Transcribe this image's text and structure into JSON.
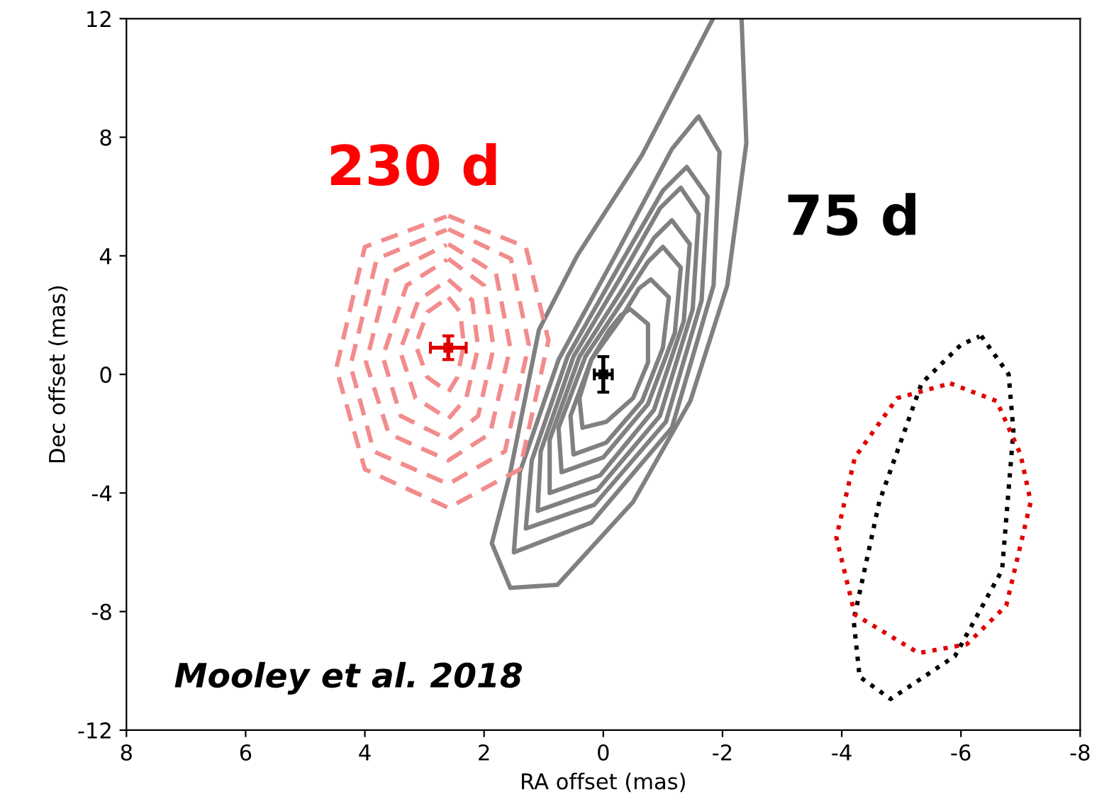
{
  "chart_data": {
    "type": "line",
    "xlabel": "RA offset (mas)",
    "ylabel": "Dec offset (mas)",
    "xlim": [
      8,
      -8
    ],
    "xticks": [
      8,
      6,
      4,
      2,
      0,
      -2,
      -4,
      -6,
      -8
    ],
    "ylim": [
      -12,
      12
    ],
    "yticks": [
      -12,
      -8,
      -4,
      0,
      4,
      8,
      12
    ],
    "grid": false,
    "annotations": [
      "230 d",
      "75 d",
      "Mooley et al. 2018"
    ],
    "series": [
      {
        "color": "#808080",
        "line_style": "solid",
        "x": [
          -1.84,
          -0.65,
          0.44,
          1.08,
          1.56,
          1.87,
          1.56,
          0.77,
          -0.5,
          -1.46,
          -2.08,
          -2.4,
          -2.32
        ],
        "values": [
          12,
          7.4,
          4.0,
          1.5,
          -3.3,
          -5.7,
          -7.2,
          -7.1,
          -4.3,
          -0.9,
          3.0,
          7.8,
          12
        ]
      },
      {
        "color": "#808080",
        "line_style": "solid",
        "x": [
          -1.6,
          -1.95,
          -1.85,
          -1.15,
          0.2,
          1.5,
          1.4,
          0.75,
          -0.2,
          -1.15,
          -1.58
        ],
        "values": [
          8.7,
          7.5,
          3.0,
          -1.8,
          -5.0,
          -6.0,
          -3.3,
          0.5,
          4.0,
          7.6,
          8.66
        ]
      },
      {
        "color": "#808080",
        "line_style": "solid",
        "x": [
          -1.4,
          -1.75,
          -1.65,
          -1.05,
          0.15,
          1.3,
          1.2,
          0.6,
          -0.25,
          -1.0,
          -1.38
        ],
        "values": [
          7.0,
          6.0,
          2.5,
          -1.6,
          -4.4,
          -5.2,
          -2.9,
          0.6,
          3.6,
          6.2,
          6.96
        ]
      },
      {
        "color": "#808080",
        "line_style": "solid",
        "x": [
          -1.3,
          -1.6,
          -1.5,
          -0.95,
          0.1,
          1.1,
          1.05,
          0.5,
          -0.3,
          -0.95,
          -1.28
        ],
        "values": [
          6.3,
          5.4,
          2.2,
          -1.4,
          -3.9,
          -4.6,
          -2.6,
          0.6,
          3.3,
          5.6,
          6.26
        ]
      },
      {
        "color": "#808080",
        "line_style": "solid",
        "x": [
          -1.15,
          -1.45,
          -1.35,
          -0.85,
          0.05,
          0.9,
          0.9,
          0.4,
          -0.3,
          -0.85,
          -1.13
        ],
        "values": [
          5.2,
          4.4,
          1.8,
          -1.2,
          -3.4,
          -4.0,
          -2.2,
          0.6,
          2.8,
          4.6,
          5.16
        ]
      },
      {
        "color": "#808080",
        "line_style": "solid",
        "x": [
          -1.0,
          -1.3,
          -1.2,
          -0.75,
          0.0,
          0.7,
          0.75,
          0.3,
          -0.3,
          -0.75,
          -0.98
        ],
        "values": [
          4.3,
          3.6,
          1.4,
          -1.0,
          -2.8,
          -3.3,
          -1.8,
          0.6,
          2.4,
          3.8,
          4.26
        ]
      },
      {
        "color": "#808080",
        "line_style": "solid",
        "x": [
          -0.8,
          -1.1,
          -1.0,
          -0.65,
          -0.05,
          0.5,
          0.55,
          0.2,
          -0.3,
          -0.6,
          -0.78
        ],
        "values": [
          3.2,
          2.6,
          0.9,
          -0.9,
          -2.3,
          -2.7,
          -1.4,
          0.5,
          1.9,
          2.9,
          3.18
        ]
      },
      {
        "color": "#808080",
        "line_style": "solid",
        "x": [
          -0.45,
          -0.75,
          -0.75,
          -0.5,
          -0.05,
          0.35,
          0.4,
          0.2,
          -0.1,
          -0.3,
          -0.43
        ],
        "values": [
          2.2,
          1.7,
          0.4,
          -0.8,
          -1.6,
          -1.8,
          -0.8,
          0.5,
          1.5,
          2.0,
          2.18
        ]
      },
      {
        "color": "#f28c8c",
        "line_style": "dashed",
        "x": [
          2.6,
          1.3,
          0.92,
          1.4,
          2.6,
          4.0,
          4.48,
          4.0,
          2.63
        ],
        "values": [
          5.35,
          4.3,
          1.15,
          -3.2,
          -4.5,
          -3.2,
          0.2,
          4.3,
          5.33
        ]
      },
      {
        "color": "#f28c8c",
        "line_style": "dashed",
        "x": [
          2.6,
          1.55,
          1.25,
          1.65,
          2.6,
          3.85,
          4.24,
          3.8,
          2.63
        ],
        "values": [
          4.9,
          3.9,
          1.0,
          -2.6,
          -3.7,
          -2.6,
          0.3,
          3.9,
          4.88
        ]
      },
      {
        "color": "#f28c8c",
        "line_style": "dashed",
        "x": [
          2.6,
          1.8,
          1.56,
          1.9,
          2.6,
          3.6,
          3.98,
          3.6,
          2.63
        ],
        "values": [
          4.4,
          3.4,
          0.9,
          -2.0,
          -2.9,
          -2.0,
          0.4,
          3.4,
          4.37
        ]
      },
      {
        "color": "#f28c8c",
        "line_style": "dashed",
        "x": [
          2.6,
          2.0,
          1.84,
          2.1,
          2.6,
          3.4,
          3.7,
          3.3,
          2.62
        ],
        "values": [
          3.9,
          3.0,
          0.9,
          -1.4,
          -2.2,
          -1.4,
          0.6,
          3.0,
          3.87
        ]
      },
      {
        "color": "#f28c8c",
        "line_style": "dashed",
        "x": [
          2.6,
          2.2,
          2.1,
          2.3,
          2.6,
          3.15,
          3.41,
          3.1,
          2.62
        ],
        "values": [
          3.2,
          2.5,
          0.9,
          -0.8,
          -1.5,
          -0.8,
          0.8,
          2.5,
          3.17
        ]
      },
      {
        "color": "#f28c8c",
        "line_style": "dashed",
        "x": [
          2.6,
          2.4,
          2.34,
          2.45,
          2.6,
          2.95,
          3.15,
          2.95,
          2.62
        ],
        "values": [
          2.6,
          2.1,
          1.0,
          -0.1,
          -0.6,
          -0.1,
          1.0,
          2.1,
          2.57
        ]
      },
      {
        "color": "#000000",
        "line_style": "dotted",
        "x": [
          -6.34,
          -6.8,
          -6.88,
          -6.69,
          -5.9,
          -4.82,
          -4.3,
          -4.2,
          -4.63,
          -5.34,
          -6.0,
          -6.31
        ],
        "values": [
          1.3,
          0.0,
          -1.9,
          -6.6,
          -9.5,
          -10.95,
          -10.2,
          -8.3,
          -4.3,
          -0.3,
          1.0,
          1.28
        ]
      },
      {
        "color": "#e00000",
        "line_style": "dotted",
        "x": [
          -5.82,
          -6.6,
          -7.0,
          -7.17,
          -6.76,
          -6.1,
          -5.29,
          -4.22,
          -3.91,
          -4.22,
          -4.93,
          -5.79
        ],
        "values": [
          -0.3,
          -0.9,
          -2.7,
          -4.3,
          -7.8,
          -9.1,
          -9.4,
          -8.1,
          -5.5,
          -2.8,
          -0.8,
          -0.32
        ]
      },
      {
        "type": "scatter",
        "marker": "square",
        "color": "#e00000",
        "x": [
          2.6
        ],
        "values": [
          0.9
        ],
        "errors": [
          0.4
        ],
        "xerrors": [
          0.3
        ]
      },
      {
        "type": "scatter",
        "marker": "square",
        "color": "#000000",
        "x": [
          0.0
        ],
        "values": [
          0.0
        ],
        "errors": [
          0.6
        ],
        "xerrors": [
          0.15
        ]
      }
    ]
  }
}
